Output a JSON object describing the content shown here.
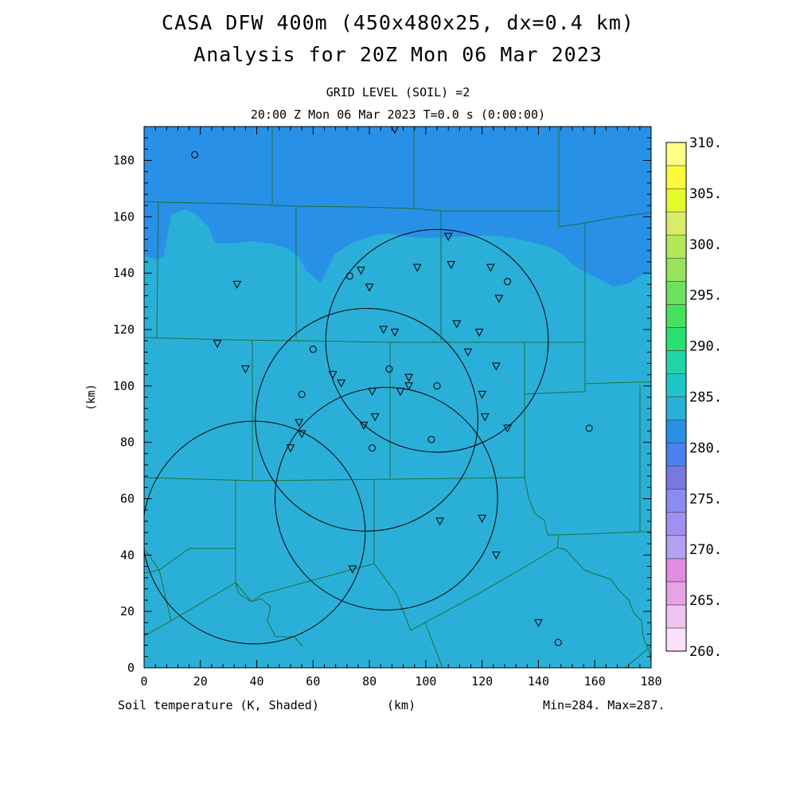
{
  "header": {
    "title_line1": "CASA DFW 400m (450x480x25, dx=0.4 km)",
    "title_line2": "Analysis for 20Z Mon 06 Mar 2023",
    "subtitle_line1": "GRID LEVEL (SOIL) =2",
    "subtitle_line2": "20:00 Z Mon 06 Mar 2023   T=0.0 s (0:00:00)"
  },
  "footer": {
    "field_label": "Soil temperature (K, Shaded)",
    "x_unit": "(km)",
    "minmax": "Min=284. Max=287."
  },
  "axes": {
    "x_ticks": [
      "0",
      "20",
      "40",
      "60",
      "80",
      "100",
      "120",
      "140",
      "160",
      "180"
    ],
    "y_ticks": [
      "0",
      "20",
      "40",
      "60",
      "80",
      "100",
      "120",
      "140",
      "160",
      "180"
    ],
    "ylabel": "(km)",
    "xlim": [
      0,
      180
    ],
    "ylim": [
      0,
      192
    ]
  },
  "colorbar": {
    "labels": [
      "260.",
      "265.",
      "270.",
      "275.",
      "280.",
      "285.",
      "290.",
      "295.",
      "300.",
      "305.",
      "310."
    ],
    "colors": [
      "#fbe0fb",
      "#f0c4ee",
      "#e8a2e6",
      "#e08ce0",
      "#b4a0f0",
      "#a090f4",
      "#8c8cf0",
      "#7878e0",
      "#4c80f0",
      "#2890e6",
      "#2ab0d8",
      "#1ec6c8",
      "#20d4a8",
      "#28e070",
      "#46e05a",
      "#6ee060",
      "#96e45a",
      "#b4e858",
      "#d8ee6a",
      "#e6fa2a",
      "#fafa3c",
      "#ffff88"
    ]
  },
  "field": {
    "warm_color": "#2ab0d8",
    "cool_color": "#2890e6"
  },
  "radars": [
    {
      "center": [
        39,
        48
      ],
      "radius_km": 39.5
    },
    {
      "center": [
        86,
        60
      ],
      "radius_km": 39.5
    },
    {
      "center": [
        79,
        88
      ],
      "radius_km": 39.5
    },
    {
      "center": [
        104,
        116
      ],
      "radius_km": 39.5
    }
  ],
  "stations": {
    "triangles": [
      [
        33,
        136
      ],
      [
        26,
        115
      ],
      [
        36,
        106
      ],
      [
        77,
        141
      ],
      [
        80,
        135
      ],
      [
        97,
        142
      ],
      [
        108,
        153
      ],
      [
        109,
        143
      ],
      [
        123,
        142
      ],
      [
        126,
        131
      ],
      [
        111,
        122
      ],
      [
        119,
        119
      ],
      [
        85,
        120
      ],
      [
        89,
        119
      ],
      [
        115,
        112
      ],
      [
        125,
        107
      ],
      [
        67,
        104
      ],
      [
        70,
        101
      ],
      [
        94,
        103
      ],
      [
        81,
        98
      ],
      [
        91,
        98
      ],
      [
        94,
        100
      ],
      [
        120,
        97
      ],
      [
        121,
        89
      ],
      [
        129,
        85
      ],
      [
        55,
        87
      ],
      [
        56,
        83
      ],
      [
        82,
        89
      ],
      [
        78,
        86
      ],
      [
        52,
        78
      ],
      [
        105,
        52
      ],
      [
        120,
        53
      ],
      [
        125,
        40
      ],
      [
        74,
        35
      ],
      [
        140,
        16
      ],
      [
        89,
        191
      ]
    ],
    "circles": [
      [
        18,
        182
      ],
      [
        73,
        139
      ],
      [
        129,
        137
      ],
      [
        60,
        113
      ],
      [
        87,
        106
      ],
      [
        104,
        100
      ],
      [
        56,
        97
      ],
      [
        102,
        81
      ],
      [
        81,
        78
      ],
      [
        158,
        85
      ],
      [
        147,
        9
      ]
    ]
  }
}
